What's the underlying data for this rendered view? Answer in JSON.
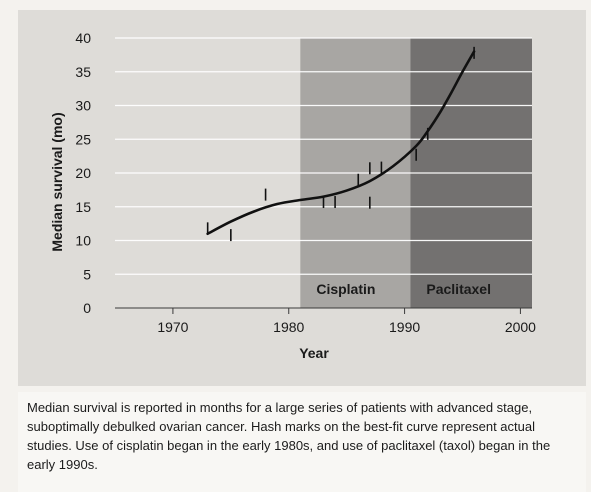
{
  "chart_data": {
    "type": "line",
    "title": "",
    "xlabel": "Year",
    "ylabel": "Median survival (mo)",
    "xlim": [
      1965,
      2001
    ],
    "ylim": [
      0,
      40
    ],
    "x_ticks": [
      1970,
      1980,
      1990,
      2000
    ],
    "y_ticks": [
      0,
      5,
      10,
      15,
      20,
      25,
      30,
      35,
      40
    ],
    "grid": true,
    "eras": [
      {
        "label": "Cisplatin",
        "start": 1981,
        "end": 1990.5,
        "color": "#a8a6a3"
      },
      {
        "label": "Paclitaxel",
        "start": 1990.5,
        "end": 2001,
        "color": "#737170"
      }
    ],
    "series": [
      {
        "x": [
          1973,
          1975,
          1977,
          1979,
          1981,
          1983,
          1985,
          1987,
          1989,
          1991,
          1992,
          1993,
          1994,
          1995,
          1996
        ],
        "values": [
          11,
          12.8,
          14.3,
          15.4,
          16.0,
          16.5,
          17.4,
          18.8,
          21.0,
          24.0,
          26.2,
          28.8,
          31.8,
          35.0,
          38.0
        ]
      }
    ],
    "studies": [
      {
        "x": 1973,
        "y": 11.8
      },
      {
        "x": 1975,
        "y": 10.8
      },
      {
        "x": 1978,
        "y": 16.8
      },
      {
        "x": 1983,
        "y": 15.7
      },
      {
        "x": 1984,
        "y": 15.7
      },
      {
        "x": 1986,
        "y": 19.0
      },
      {
        "x": 1987,
        "y": 20.7
      },
      {
        "x": 1987,
        "y": 15.6
      },
      {
        "x": 1988,
        "y": 20.8
      },
      {
        "x": 1991,
        "y": 22.7
      },
      {
        "x": 1992,
        "y": 25.8
      },
      {
        "x": 1996,
        "y": 37.8
      }
    ]
  },
  "caption": "Median survival is reported in months for a large series of patients with advanced stage, suboptimally debulked ovarian cancer. Hash marks on the best-fit curve represent actual studies. Use of cisplatin began in the early 1980s, and use of paclitaxel (taxol) began in the early 1990s."
}
